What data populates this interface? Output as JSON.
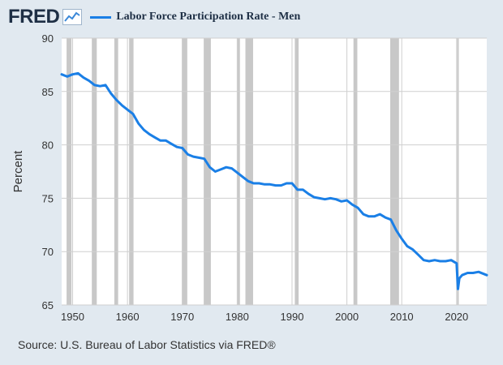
{
  "brand": {
    "logo_text": "FRED",
    "logo_icon": "line-chart-icon"
  },
  "colors": {
    "series": "#1a7fe6",
    "recession": "#c8c8c8",
    "grid": "#cfcfcf",
    "background": "#e1e9f0",
    "plot_bg": "#ffffff"
  },
  "source": "Source: U.S. Bureau of Labor Statistics via FRED®",
  "chart_data": {
    "type": "line",
    "title": "",
    "xlabel": "",
    "ylabel": "Percent",
    "xlim": [
      1948,
      2025.5
    ],
    "ylim": [
      65,
      90
    ],
    "y_ticks": [
      65,
      70,
      75,
      80,
      85,
      90
    ],
    "x_ticks": [
      1950,
      1960,
      1970,
      1980,
      1990,
      2000,
      2010,
      2020
    ],
    "grid": true,
    "legend_position": "top-left",
    "recessions": [
      [
        1948.9,
        1949.8
      ],
      [
        1953.5,
        1954.4
      ],
      [
        1957.6,
        1958.3
      ],
      [
        1960.3,
        1961.1
      ],
      [
        1969.9,
        1970.9
      ],
      [
        1973.9,
        1975.2
      ],
      [
        1980.0,
        1980.5
      ],
      [
        1981.5,
        1982.9
      ],
      [
        1990.5,
        1991.2
      ],
      [
        2001.2,
        2001.9
      ],
      [
        2007.9,
        2009.5
      ],
      [
        2020.1,
        2020.3
      ]
    ],
    "series": [
      {
        "name": "Labor Force Participation Rate - Men",
        "x": [
          1948,
          1949,
          1950,
          1951,
          1952,
          1953,
          1954,
          1955,
          1956,
          1957,
          1958,
          1959,
          1960,
          1961,
          1962,
          1963,
          1964,
          1965,
          1966,
          1967,
          1968,
          1969,
          1970,
          1971,
          1972,
          1973,
          1974,
          1975,
          1976,
          1977,
          1978,
          1979,
          1980,
          1981,
          1982,
          1983,
          1984,
          1985,
          1986,
          1987,
          1988,
          1989,
          1990,
          1991,
          1992,
          1993,
          1994,
          1995,
          1996,
          1997,
          1998,
          1999,
          2000,
          2001,
          2002,
          2003,
          2004,
          2005,
          2006,
          2007,
          2008,
          2009,
          2010,
          2011,
          2012,
          2013,
          2014,
          2015,
          2016,
          2017,
          2018,
          2019,
          2020.0,
          2020.25,
          2020.5,
          2021,
          2022,
          2023,
          2024,
          2025.5
        ],
        "y": [
          86.6,
          86.4,
          86.6,
          86.7,
          86.3,
          86.0,
          85.6,
          85.5,
          85.6,
          84.8,
          84.2,
          83.7,
          83.3,
          82.9,
          82.0,
          81.4,
          81.0,
          80.7,
          80.4,
          80.4,
          80.1,
          79.8,
          79.7,
          79.1,
          78.9,
          78.8,
          78.7,
          77.9,
          77.5,
          77.7,
          77.9,
          77.8,
          77.4,
          77.0,
          76.6,
          76.4,
          76.4,
          76.3,
          76.3,
          76.2,
          76.2,
          76.4,
          76.4,
          75.8,
          75.8,
          75.4,
          75.1,
          75.0,
          74.9,
          75.0,
          74.9,
          74.7,
          74.8,
          74.4,
          74.1,
          73.5,
          73.3,
          73.3,
          73.5,
          73.2,
          73.0,
          72.0,
          71.2,
          70.5,
          70.2,
          69.7,
          69.2,
          69.1,
          69.2,
          69.1,
          69.1,
          69.2,
          68.9,
          66.5,
          67.5,
          67.8,
          68.0,
          68.0,
          68.1,
          67.8
        ]
      }
    ]
  }
}
